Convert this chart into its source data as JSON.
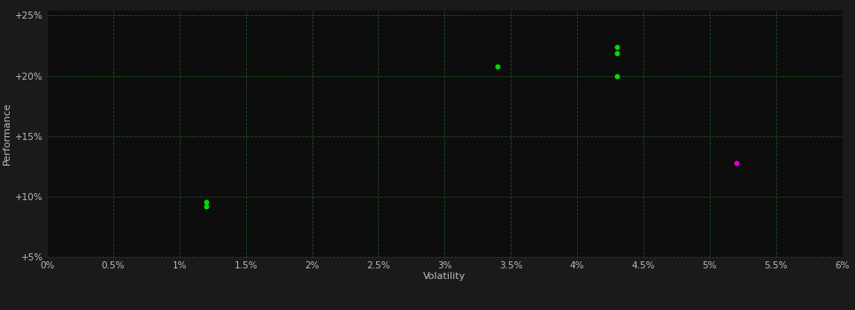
{
  "background_color": "#1a1a1a",
  "plot_bg_color": "#0d0d0d",
  "grid_color": "#1e4d1e",
  "text_color": "#bbbbbb",
  "xlabel": "Volatility",
  "ylabel": "Performance",
  "xlim": [
    0.0,
    0.06
  ],
  "ylim": [
    0.05,
    0.255
  ],
  "xticks": [
    0.0,
    0.005,
    0.01,
    0.015,
    0.02,
    0.025,
    0.03,
    0.035,
    0.04,
    0.045,
    0.05,
    0.055,
    0.06
  ],
  "yticks": [
    0.05,
    0.1,
    0.15,
    0.2,
    0.25
  ],
  "green_points": [
    [
      0.012,
      0.092
    ],
    [
      0.012,
      0.096
    ],
    [
      0.034,
      0.208
    ],
    [
      0.043,
      0.224
    ],
    [
      0.043,
      0.219
    ],
    [
      0.043,
      0.2
    ]
  ],
  "magenta_points": [
    [
      0.052,
      0.128
    ]
  ],
  "green_color": "#00dd00",
  "magenta_color": "#dd00dd",
  "marker_size": 18
}
